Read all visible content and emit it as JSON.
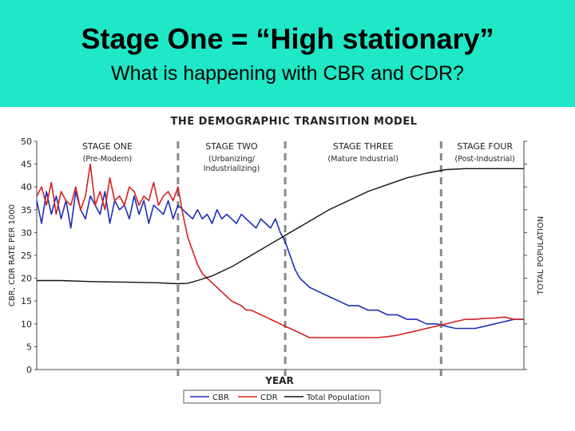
{
  "slide": {
    "title": "Stage One = “High stationary”",
    "subtitle": "What is happening with CBR and CDR?"
  },
  "chart_data": {
    "type": "line",
    "title": "THE DEMOGRAPHIC TRANSITION MODEL",
    "xlabel": "YEAR",
    "ylabel": "CBR, CDR RATE PER 1000",
    "y2label": "TOTAL POPULATION",
    "ylim": [
      0,
      50
    ],
    "yticks": [
      0,
      5,
      10,
      15,
      20,
      25,
      30,
      35,
      40,
      45,
      50
    ],
    "xlim": [
      0,
      100
    ],
    "grid": false,
    "stage_dividers": [
      29,
      51,
      83
    ],
    "stages": [
      {
        "name": "STAGE ONE",
        "desc": [
          "(Pre-Modern)"
        ],
        "x": 14.5
      },
      {
        "name": "STAGE TWO",
        "desc": [
          "(Urbanizing/",
          "Industrializing)"
        ],
        "x": 40
      },
      {
        "name": "STAGE THREE",
        "desc": [
          "(Mature Industrial)"
        ],
        "x": 67
      },
      {
        "name": "STAGE FOUR",
        "desc": [
          "(Post-Industrial)"
        ],
        "x": 92
      }
    ],
    "legend": {
      "placement": "bottom"
    },
    "series": [
      {
        "name": "CBR",
        "color": "#1f2fb8",
        "x": [
          0,
          1,
          2,
          3,
          4,
          5,
          6,
          7,
          8,
          9,
          10,
          11,
          12,
          13,
          14,
          15,
          16,
          17,
          18,
          19,
          20,
          21,
          22,
          23,
          24,
          25,
          26,
          27,
          28,
          29,
          30,
          31,
          32,
          33,
          34,
          35,
          36,
          37,
          38,
          39,
          40,
          41,
          42,
          43,
          44,
          45,
          46,
          47,
          48,
          49,
          50,
          51,
          52,
          53,
          54,
          56,
          58,
          60,
          62,
          64,
          66,
          68,
          70,
          72,
          74,
          76,
          78,
          80,
          82,
          84,
          86,
          88,
          90,
          92,
          94,
          96,
          98,
          100
        ],
        "values": [
          37,
          32,
          39,
          34,
          38,
          33,
          37,
          31,
          39,
          35,
          33,
          38,
          36,
          34,
          39,
          32,
          37,
          35,
          36,
          33,
          38,
          34,
          37,
          32,
          36,
          35,
          34,
          37,
          33,
          36,
          35,
          34,
          33,
          35,
          33,
          34,
          32,
          35,
          33,
          34,
          33,
          32,
          34,
          33,
          32,
          31,
          33,
          32,
          31,
          33,
          30,
          28,
          25,
          22,
          20,
          18,
          17,
          16,
          15,
          14,
          14,
          13,
          13,
          12,
          12,
          11,
          11,
          10,
          10,
          9.5,
          9,
          9,
          9,
          9.5,
          10,
          10.5,
          11,
          11
        ]
      },
      {
        "name": "CDR",
        "color": "#d62020",
        "x": [
          0,
          1,
          2,
          3,
          4,
          5,
          6,
          7,
          8,
          9,
          10,
          11,
          12,
          13,
          14,
          15,
          16,
          17,
          18,
          19,
          20,
          21,
          22,
          23,
          24,
          25,
          26,
          27,
          28,
          29,
          30,
          31,
          32,
          33,
          34,
          35,
          36,
          37,
          38,
          39,
          40,
          41,
          42,
          43,
          44,
          45,
          46,
          47,
          48,
          49,
          50,
          51,
          52,
          53,
          54,
          55,
          56,
          58,
          60,
          62,
          64,
          66,
          68,
          70,
          72,
          74,
          76,
          78,
          80,
          82,
          84,
          86,
          88,
          90,
          92,
          94,
          96,
          98,
          100
        ],
        "values": [
          38,
          40,
          36,
          41,
          34,
          39,
          37,
          36,
          40,
          35,
          38,
          45,
          36,
          39,
          35,
          42,
          37,
          38,
          36,
          40,
          39,
          36,
          38,
          37,
          41,
          36,
          38,
          39,
          37,
          40,
          34,
          29,
          26,
          23,
          21,
          20,
          19,
          18,
          17,
          16,
          15,
          14.5,
          14,
          13,
          13,
          12.5,
          12,
          11.5,
          11,
          10.5,
          10,
          9.5,
          9,
          8.5,
          8,
          7.5,
          7,
          7,
          7,
          7,
          7,
          7,
          7,
          7,
          7.2,
          7.5,
          8,
          8.5,
          9,
          9.5,
          10,
          10.5,
          11,
          11,
          11.2,
          11.3,
          11.5,
          11,
          11
        ]
      },
      {
        "name": "Total Population",
        "color": "#111111",
        "axis": "right",
        "x": [
          0,
          5,
          10,
          15,
          20,
          25,
          29,
          31,
          33,
          36,
          40,
          44,
          48,
          52,
          56,
          60,
          64,
          68,
          72,
          76,
          80,
          84,
          88,
          92,
          96,
          100
        ],
        "values": [
          19.5,
          19.5,
          19.3,
          19.2,
          19.1,
          19,
          18.8,
          18.9,
          19.5,
          20.5,
          22.5,
          25,
          27.5,
          30,
          32.5,
          35,
          37,
          39,
          40.5,
          42,
          43,
          43.8,
          44,
          44,
          44,
          44
        ]
      }
    ]
  }
}
